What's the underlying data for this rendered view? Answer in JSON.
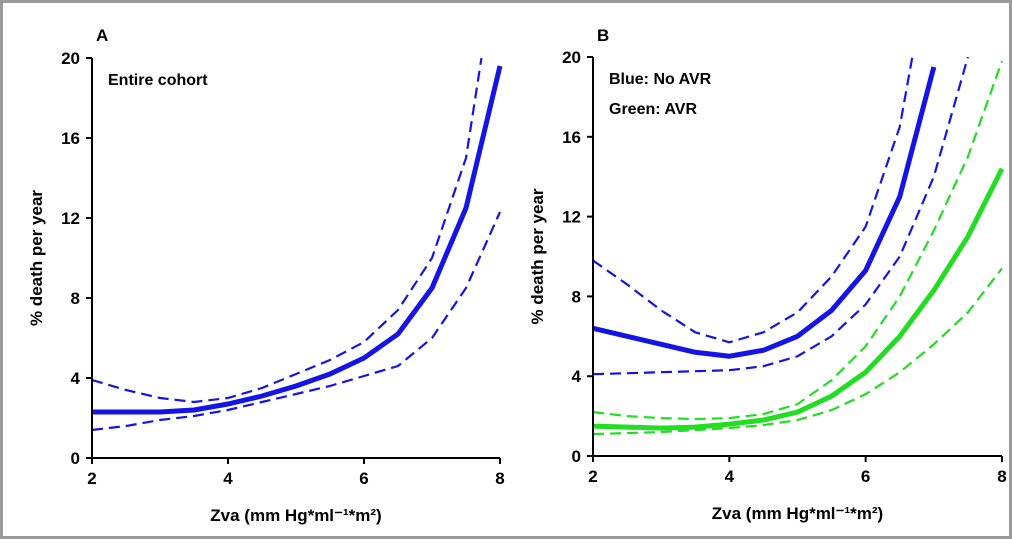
{
  "chart_data": [
    {
      "type": "line",
      "panel_label": "A",
      "annotations": [
        "Entire cohort"
      ],
      "xlabel": "Zva (mm Hg*ml⁻¹*m²)",
      "ylabel": "% death per year",
      "xlim": [
        2,
        8
      ],
      "ylim": [
        0,
        20
      ],
      "xticks": [
        2,
        4,
        6,
        8
      ],
      "yticks": [
        0,
        4,
        8,
        12,
        16,
        20
      ],
      "x": [
        2,
        2.5,
        3,
        3.5,
        4,
        4.5,
        5,
        5.5,
        6,
        6.5,
        7,
        7.5,
        8
      ],
      "series": [
        {
          "color": "#1414e6",
          "dashed": false,
          "values": [
            2.3,
            2.3,
            2.3,
            2.4,
            2.7,
            3.1,
            3.6,
            4.2,
            5.0,
            6.2,
            8.5,
            12.5,
            19.6
          ]
        },
        {
          "color": "#1414e6",
          "dashed": true,
          "values": [
            3.9,
            3.4,
            3.0,
            2.8,
            3.0,
            3.5,
            4.2,
            4.9,
            5.8,
            7.4,
            10,
            15,
            26
          ]
        },
        {
          "color": "#1414e6",
          "dashed": true,
          "values": [
            1.4,
            1.6,
            1.9,
            2.1,
            2.4,
            2.8,
            3.2,
            3.6,
            4.1,
            4.6,
            6,
            8.5,
            12.3
          ]
        }
      ]
    },
    {
      "type": "line",
      "panel_label": "B",
      "annotations": [
        "Blue: No AVR",
        "Green: AVR"
      ],
      "xlabel": "Zva (mm Hg*ml⁻¹*m²)",
      "ylabel": "% death per year",
      "xlim": [
        2,
        8
      ],
      "ylim": [
        0,
        20
      ],
      "xticks": [
        2,
        4,
        6,
        8
      ],
      "yticks": [
        0,
        4,
        8,
        12,
        16,
        20
      ],
      "x": [
        2,
        2.5,
        3,
        3.5,
        4,
        4.5,
        5,
        5.5,
        6,
        6.5,
        7,
        7.5,
        8
      ],
      "series": [
        {
          "color": "#1414e6",
          "dashed": false,
          "values": [
            6.4,
            6.0,
            5.6,
            5.2,
            5.0,
            5.3,
            6.0,
            7.3,
            9.3,
            13,
            19.5,
            null,
            null
          ]
        },
        {
          "color": "#1414e6",
          "dashed": true,
          "values": [
            9.8,
            8.6,
            7.3,
            6.2,
            5.7,
            6.2,
            7.2,
            9,
            11.5,
            16.5,
            26,
            null,
            null
          ]
        },
        {
          "color": "#1414e6",
          "dashed": true,
          "values": [
            4.1,
            4.15,
            4.2,
            4.25,
            4.3,
            4.5,
            5,
            6,
            7.6,
            10,
            14,
            20,
            null
          ]
        },
        {
          "color": "#22dd22",
          "dashed": false,
          "values": [
            1.5,
            1.45,
            1.4,
            1.45,
            1.6,
            1.8,
            2.2,
            3,
            4.2,
            6,
            8.3,
            11,
            14.4
          ]
        },
        {
          "color": "#22dd22",
          "dashed": true,
          "values": [
            2.2,
            2.0,
            1.9,
            1.85,
            1.9,
            2.1,
            2.6,
            3.8,
            5.5,
            8,
            11.3,
            15,
            19.8
          ]
        },
        {
          "color": "#22dd22",
          "dashed": true,
          "values": [
            1.1,
            1.15,
            1.2,
            1.3,
            1.4,
            1.55,
            1.8,
            2.3,
            3.1,
            4.2,
            5.6,
            7.2,
            9.4
          ]
        }
      ]
    }
  ]
}
